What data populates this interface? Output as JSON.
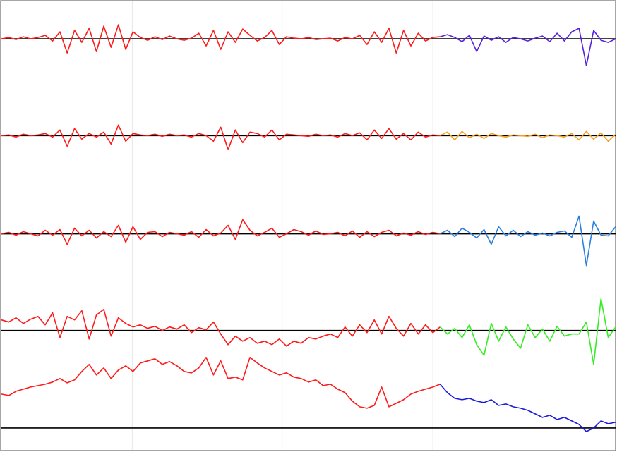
{
  "chart_data": {
    "type": "line",
    "x": [
      0,
      1,
      2,
      3,
      4,
      5,
      6,
      7,
      8,
      9,
      10,
      11,
      12,
      13,
      14,
      15,
      16,
      17,
      18,
      19,
      20,
      21,
      22,
      23,
      24,
      25,
      26,
      27,
      28,
      29,
      30,
      31,
      32,
      33,
      34,
      35,
      36,
      37,
      38,
      39,
      40,
      41,
      42,
      43,
      44,
      45,
      46,
      47,
      48,
      49,
      50,
      51,
      52,
      53,
      54,
      55,
      56,
      57,
      58,
      59,
      60,
      61,
      62,
      63,
      64,
      65,
      66,
      67,
      68,
      69,
      70,
      71,
      72,
      73,
      74,
      75,
      76,
      77,
      78,
      79,
      80,
      81,
      82,
      83,
      84
    ],
    "xlim": [
      0,
      84
    ],
    "xticks": [
      17.9,
      38.4,
      59
    ],
    "grid": true,
    "panels": [
      {
        "ylim": [
          -74,
          53
        ],
        "series": [
          {
            "color": "#ff1a1a",
            "values": [
              0,
              2,
              -1,
              3,
              0,
              2,
              5,
              -3,
              10,
              -20,
              12,
              -5,
              15,
              -18,
              18,
              -12,
              20,
              -15,
              10,
              2,
              -2,
              3,
              -1,
              4,
              0,
              -2,
              1,
              8,
              -10,
              12,
              -15,
              10,
              -5,
              14,
              5,
              -3,
              2,
              12,
              -8,
              3,
              1,
              0,
              2,
              -1,
              0,
              1,
              -3,
              2,
              0,
              5,
              -8,
              10,
              -5,
              15,
              -20,
              12,
              -10,
              8,
              -3,
              2,
              3,
              null,
              null,
              null,
              null,
              null,
              null,
              null,
              null,
              null,
              null,
              null,
              null,
              null,
              null,
              null,
              null,
              null,
              null,
              null,
              null,
              null,
              null,
              null,
              null
            ]
          },
          {
            "color": "#5522dd",
            "values": [
              null,
              null,
              null,
              null,
              null,
              null,
              null,
              null,
              null,
              null,
              null,
              null,
              null,
              null,
              null,
              null,
              null,
              null,
              null,
              null,
              null,
              null,
              null,
              null,
              null,
              null,
              null,
              null,
              null,
              null,
              null,
              null,
              null,
              null,
              null,
              null,
              null,
              null,
              null,
              null,
              null,
              null,
              null,
              null,
              null,
              null,
              null,
              null,
              null,
              null,
              null,
              null,
              null,
              null,
              null,
              null,
              null,
              null,
              null,
              null,
              3,
              6,
              2,
              -4,
              5,
              -18,
              4,
              -2,
              3,
              -5,
              2,
              0,
              -3,
              1,
              4,
              -4,
              8,
              -3,
              10,
              15,
              -38,
              12,
              -2,
              -5,
              0
            ]
          }
        ]
      },
      {
        "ylim": [
          -64,
          63
        ],
        "series": [
          {
            "color": "#ff1a1a",
            "values": [
              0,
              1,
              -2,
              2,
              0,
              1,
              3,
              -2,
              8,
              -15,
              10,
              -5,
              3,
              -2,
              5,
              -12,
              15,
              -8,
              3,
              1,
              0,
              2,
              -1,
              2,
              0,
              1,
              -2,
              3,
              0,
              -8,
              12,
              -20,
              8,
              -10,
              5,
              3,
              -2,
              8,
              -6,
              2,
              1,
              0,
              -1,
              2,
              0,
              1,
              -2,
              3,
              0,
              4,
              -6,
              8,
              -4,
              10,
              -5,
              3,
              -6,
              5,
              -2,
              1,
              0,
              null,
              null,
              null,
              null,
              null,
              null,
              null,
              null,
              null,
              null,
              null,
              null,
              null,
              null,
              null,
              null,
              null,
              null,
              null,
              null,
              null,
              null,
              null,
              null
            ]
          },
          {
            "color": "#f5a020",
            "values": [
              null,
              null,
              null,
              null,
              null,
              null,
              null,
              null,
              null,
              null,
              null,
              null,
              null,
              null,
              null,
              null,
              null,
              null,
              null,
              null,
              null,
              null,
              null,
              null,
              null,
              null,
              null,
              null,
              null,
              null,
              null,
              null,
              null,
              null,
              null,
              null,
              null,
              null,
              null,
              null,
              null,
              null,
              null,
              null,
              null,
              null,
              null,
              null,
              null,
              null,
              null,
              null,
              null,
              null,
              null,
              null,
              null,
              null,
              null,
              null,
              0,
              5,
              -6,
              6,
              -3,
              2,
              -4,
              3,
              0,
              -2,
              1,
              0,
              -1,
              2,
              -3,
              1,
              0,
              -2,
              3,
              -6,
              6,
              -5,
              4,
              -8,
              2
            ]
          }
        ]
      },
      {
        "ylim": [
          -52,
          75
        ],
        "series": [
          {
            "color": "#ff1a1a",
            "values": [
              0,
              2,
              -2,
              3,
              0,
              -3,
              5,
              -2,
              6,
              -15,
              8,
              -3,
              5,
              -6,
              3,
              -4,
              12,
              -12,
              10,
              -8,
              2,
              3,
              -4,
              2,
              0,
              -2,
              3,
              -5,
              6,
              -3,
              1,
              12,
              -8,
              20,
              5,
              -3,
              2,
              8,
              -5,
              0,
              6,
              3,
              -2,
              4,
              -1,
              0,
              2,
              -3,
              4,
              -5,
              3,
              -4,
              2,
              5,
              -3,
              1,
              -2,
              3,
              -1,
              2,
              0,
              null,
              null,
              null,
              null,
              null,
              null,
              null,
              null,
              null,
              null,
              null,
              null,
              null,
              null,
              null,
              null,
              null,
              null,
              null,
              null,
              null,
              null,
              null,
              null
            ]
          },
          {
            "color": "#2a7fe0",
            "values": [
              null,
              null,
              null,
              null,
              null,
              null,
              null,
              null,
              null,
              null,
              null,
              null,
              null,
              null,
              null,
              null,
              null,
              null,
              null,
              null,
              null,
              null,
              null,
              null,
              null,
              null,
              null,
              null,
              null,
              null,
              null,
              null,
              null,
              null,
              null,
              null,
              null,
              null,
              null,
              null,
              null,
              null,
              null,
              null,
              null,
              null,
              null,
              null,
              null,
              null,
              null,
              null,
              null,
              null,
              null,
              null,
              null,
              null,
              null,
              null,
              0,
              5,
              -4,
              8,
              2,
              -6,
              6,
              -15,
              10,
              -3,
              5,
              -4,
              3,
              -2,
              1,
              -3,
              2,
              4,
              -5,
              25,
              -45,
              18,
              -2,
              -3,
              10
            ]
          }
        ]
      },
      {
        "ylim": [
          -42,
          85
        ],
        "series": [
          {
            "color": "#ff1a1a",
            "values": [
              15,
              12,
              18,
              10,
              16,
              20,
              8,
              25,
              -10,
              20,
              15,
              28,
              -12,
              22,
              30,
              -8,
              18,
              10,
              5,
              8,
              3,
              6,
              0,
              5,
              2,
              8,
              -3,
              4,
              1,
              12,
              -5,
              -20,
              -8,
              -15,
              -10,
              -18,
              -15,
              -20,
              -12,
              -22,
              -15,
              -18,
              -10,
              -12,
              -8,
              -5,
              -10,
              5,
              -8,
              8,
              -3,
              15,
              -5,
              20,
              3,
              -8,
              10,
              -5,
              8,
              -3,
              5,
              null,
              null,
              null,
              null,
              null,
              null,
              null,
              null,
              null,
              null,
              null,
              null,
              null,
              null,
              null,
              null,
              null,
              null,
              null,
              null,
              null,
              null,
              null,
              null
            ]
          },
          {
            "color": "#33ee22",
            "values": [
              null,
              null,
              null,
              null,
              null,
              null,
              null,
              null,
              null,
              null,
              null,
              null,
              null,
              null,
              null,
              null,
              null,
              null,
              null,
              null,
              null,
              null,
              null,
              null,
              null,
              null,
              null,
              null,
              null,
              null,
              null,
              null,
              null,
              null,
              null,
              null,
              null,
              null,
              null,
              null,
              null,
              null,
              null,
              null,
              null,
              null,
              null,
              null,
              null,
              null,
              null,
              null,
              null,
              null,
              null,
              null,
              null,
              null,
              null,
              null,
              5,
              -5,
              3,
              -10,
              8,
              -20,
              -35,
              10,
              -15,
              5,
              -12,
              -25,
              8,
              -10,
              2,
              -15,
              6,
              -8,
              -5,
              -5,
              12,
              -48,
              45,
              -10,
              5
            ]
          }
        ]
      },
      {
        "ylim": [
          -31,
          96
        ],
        "series": [
          {
            "color": "#ff1a1a",
            "values": [
              48,
              46,
              52,
              55,
              58,
              60,
              62,
              65,
              70,
              64,
              68,
              80,
              90,
              75,
              85,
              70,
              82,
              88,
              80,
              92,
              95,
              98,
              90,
              94,
              88,
              80,
              78,
              85,
              100,
              75,
              95,
              70,
              72,
              68,
              100,
              92,
              85,
              80,
              75,
              78,
              72,
              70,
              65,
              68,
              60,
              62,
              55,
              50,
              38,
              30,
              28,
              32,
              58,
              30,
              35,
              40,
              48,
              52,
              55,
              58,
              62,
              null,
              null,
              null,
              null,
              null,
              null,
              null,
              null,
              null,
              null,
              null,
              null,
              null,
              null,
              null,
              null,
              null,
              null,
              null,
              null,
              null,
              null,
              null,
              null
            ]
          },
          {
            "color": "#1a1add",
            "values": [
              null,
              null,
              null,
              null,
              null,
              null,
              null,
              null,
              null,
              null,
              null,
              null,
              null,
              null,
              null,
              null,
              null,
              null,
              null,
              null,
              null,
              null,
              null,
              null,
              null,
              null,
              null,
              null,
              null,
              null,
              null,
              null,
              null,
              null,
              null,
              null,
              null,
              null,
              null,
              null,
              null,
              null,
              null,
              null,
              null,
              null,
              null,
              null,
              null,
              null,
              null,
              null,
              null,
              null,
              null,
              null,
              null,
              null,
              null,
              null,
              62,
              50,
              42,
              40,
              42,
              38,
              36,
              40,
              32,
              34,
              30,
              28,
              25,
              20,
              15,
              18,
              12,
              15,
              10,
              5,
              -5,
              0,
              10,
              6,
              8
            ]
          }
        ]
      }
    ]
  }
}
